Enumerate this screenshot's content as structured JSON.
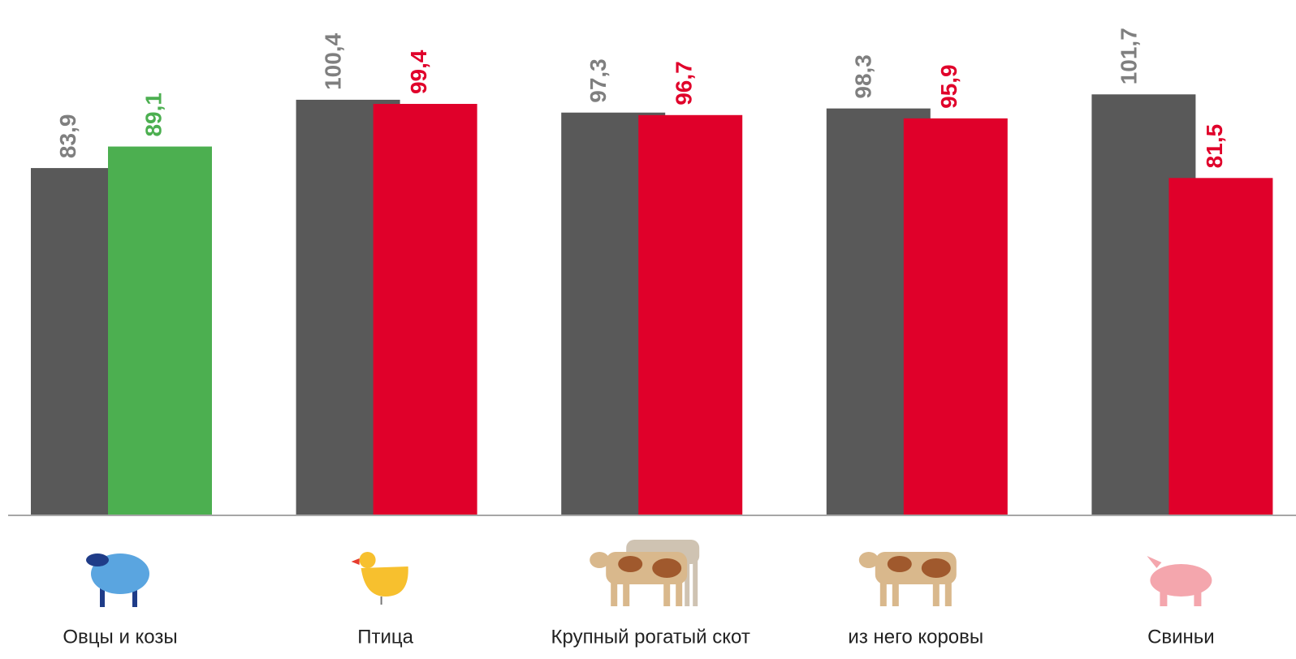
{
  "chart_data": {
    "type": "bar",
    "categories": [
      "Овцы и козы",
      "Птица",
      "Крупный рогатый скот",
      "из него коровы",
      "Свиньи"
    ],
    "series": [
      {
        "color": "#595959",
        "label_color": "#7f7f7f",
        "values": [
          83.9,
          100.4,
          97.3,
          98.3,
          101.7
        ],
        "value_labels": [
          "83,9",
          "100,4",
          "97,3",
          "98,3",
          "101,7"
        ]
      },
      {
        "colors": [
          "#4caf50",
          "#e0002a",
          "#e0002a",
          "#e0002a",
          "#e0002a"
        ],
        "values": [
          89.1,
          99.4,
          96.7,
          95.9,
          81.5
        ],
        "value_labels": [
          "89,1",
          "99,4",
          "96,7",
          "95,9",
          "81,5"
        ]
      }
    ],
    "ylim": [
      0,
      124.5
    ]
  }
}
